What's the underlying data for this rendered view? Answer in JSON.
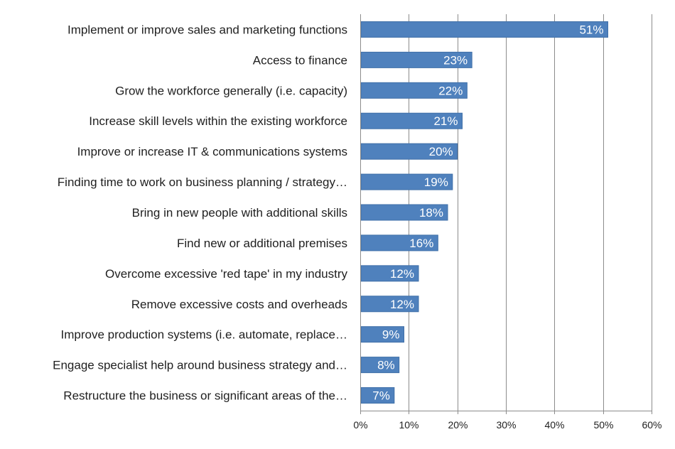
{
  "chart_data": {
    "type": "bar",
    "orientation": "horizontal",
    "title": "",
    "xlabel": "",
    "ylabel": "",
    "categories": [
      "Implement or improve sales and marketing functions",
      "Access to finance",
      "Grow the workforce generally (i.e. capacity)",
      "Increase skill levels within the existing workforce",
      "Improve or increase IT & communications systems",
      "Finding time to work on business planning / strategy…",
      "Bring in new people with additional skills",
      "Find new or additional premises",
      "Overcome excessive 'red tape' in my industry",
      "Remove excessive costs and overheads",
      "Improve production systems (i.e. automate, replace…",
      "Engage specialist help around business strategy and…",
      "Restructure the business or significant areas of the…"
    ],
    "values": [
      51,
      23,
      22,
      21,
      20,
      19,
      18,
      16,
      12,
      12,
      9,
      8,
      7
    ],
    "data_labels": [
      "51%",
      "23%",
      "22%",
      "21%",
      "20%",
      "19%",
      "18%",
      "16%",
      "12%",
      "12%",
      "9%",
      "8%",
      "7%"
    ],
    "xlim": [
      0,
      60
    ],
    "x_ticks": [
      0,
      10,
      20,
      30,
      40,
      50,
      60
    ],
    "x_tick_labels": [
      "0%",
      "10%",
      "20%",
      "30%",
      "40%",
      "50%",
      "60%"
    ],
    "grid": true,
    "legend": "none",
    "bar_color": "#4f81bd",
    "bar_border_color": "#3f6fa8"
  }
}
